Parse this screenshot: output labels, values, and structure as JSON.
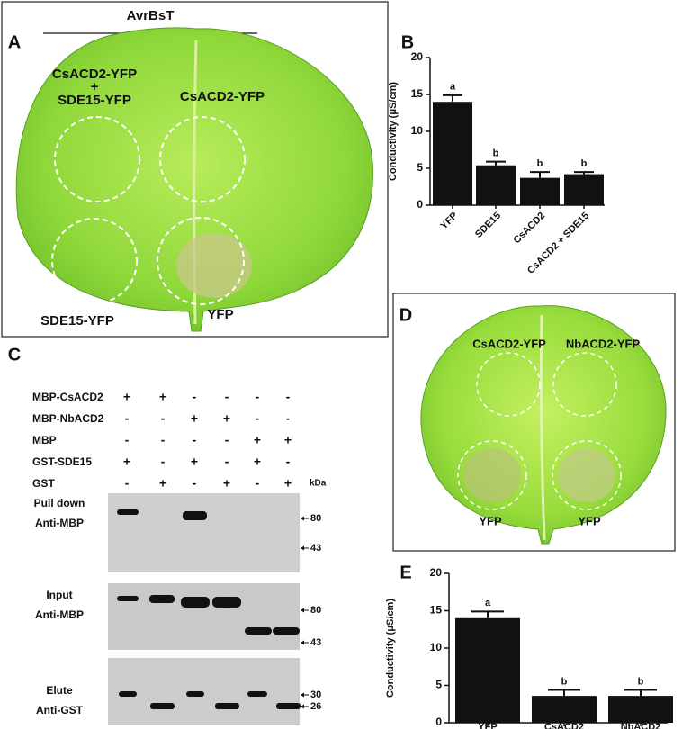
{
  "panel_a": {
    "label": "A",
    "title": "AvrBsT",
    "spots": [
      [
        "CsACD2-YFP",
        "+",
        "SDE15-YFP"
      ],
      [
        "CsACD2-YFP"
      ],
      [
        "SDE15-YFP"
      ],
      [
        "YFP"
      ]
    ]
  },
  "panel_c": {
    "label": "C",
    "unit": "kDa",
    "rows": [
      {
        "name": "MBP-CsACD2",
        "signs": [
          "+",
          "+",
          "-",
          "-",
          "-",
          "-"
        ]
      },
      {
        "name": "MBP-NbACD2",
        "signs": [
          "-",
          "-",
          "+",
          "+",
          "-",
          "-"
        ]
      },
      {
        "name": "MBP",
        "signs": [
          "-",
          "-",
          "-",
          "-",
          "+",
          "+"
        ]
      },
      {
        "name": "GST-SDE15",
        "signs": [
          "+",
          "-",
          "+",
          "-",
          "+",
          "-"
        ]
      },
      {
        "name": "GST",
        "signs": [
          "-",
          "+",
          "-",
          "+",
          "-",
          "+"
        ]
      }
    ],
    "blots": [
      {
        "name": [
          "Pull down",
          "Anti-MBP"
        ],
        "markers": [
          80,
          43
        ]
      },
      {
        "name": [
          "Input",
          "Anti-MBP"
        ],
        "markers": [
          80,
          43
        ]
      },
      {
        "name": [
          "Elute",
          "Anti-GST"
        ],
        "markers": [
          30,
          26
        ]
      }
    ]
  },
  "panel_d": {
    "label": "D",
    "spots": [
      "CsACD2-YFP",
      "NbACD2-YFP",
      "YFP",
      "YFP"
    ]
  },
  "chart_data": [
    {
      "type": "bar",
      "panel": "B",
      "ylabel": "Conductivity (μS/cm)",
      "categories": [
        "YFP",
        "SDE15",
        "CsACD2",
        "CsACD2 + SDE15"
      ],
      "values": [
        14,
        5.4,
        3.7,
        4.2
      ],
      "errors": [
        0.9,
        0.5,
        0.8,
        0.3
      ],
      "annotations": [
        "a",
        "b",
        "b",
        "b"
      ],
      "ylim": [
        0,
        20
      ],
      "yticks": [
        0,
        5,
        10,
        15,
        20
      ],
      "color": "#111111"
    },
    {
      "type": "bar",
      "panel": "E",
      "ylabel": "Conductivity (μS/cm)",
      "categories": [
        "YFP",
        "CsACD2",
        "NbACD2"
      ],
      "values": [
        14,
        3.6,
        3.6
      ],
      "errors": [
        0.9,
        0.8,
        0.8
      ],
      "annotations": [
        "a",
        "b",
        "b"
      ],
      "ylim": [
        0,
        20
      ],
      "yticks": [
        0,
        5,
        10,
        15,
        20
      ],
      "color": "#111111"
    }
  ]
}
